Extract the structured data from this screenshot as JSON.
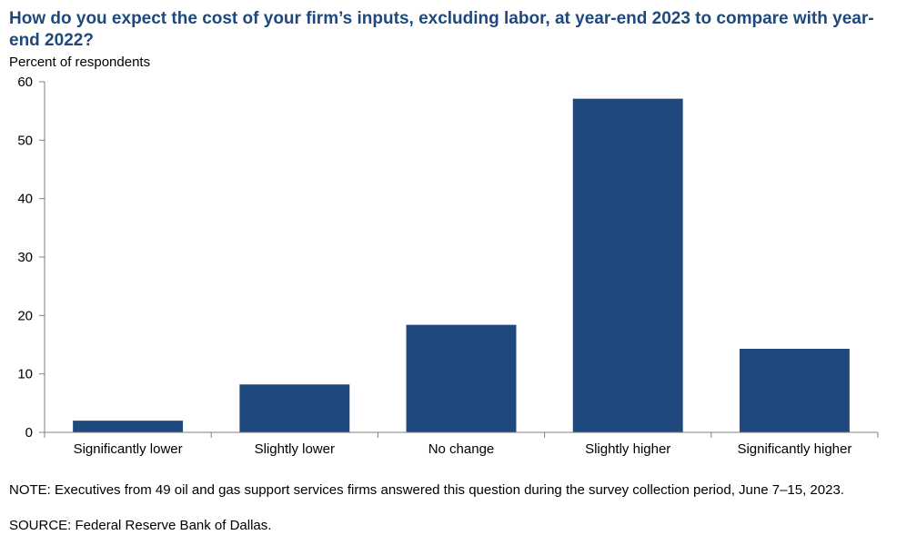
{
  "title": "How do you expect the cost of your firm’s inputs, excluding labor, at year-end 2023 to compare with year-end 2022?",
  "note": "NOTE: Executives from 49 oil and gas support services firms answered this question during the survey collection period, June 7–15, 2023.",
  "source": "SOURCE: Federal Reserve Bank of Dallas.",
  "colors": {
    "bar": "#1f497d",
    "axis": "#7f7f7f"
  },
  "chart_data": {
    "type": "bar",
    "ylabel": "Percent of respondents",
    "xlabel": "",
    "categories": [
      "Significantly lower",
      "Slightly lower",
      "No change",
      "Slightly higher",
      "Significantly higher"
    ],
    "values": [
      2.0,
      8.2,
      18.4,
      57.1,
      14.3
    ],
    "ylim": [
      0,
      60
    ],
    "yticks": [
      0,
      10,
      20,
      30,
      40,
      50,
      60
    ],
    "grid": false,
    "legend": "none"
  }
}
